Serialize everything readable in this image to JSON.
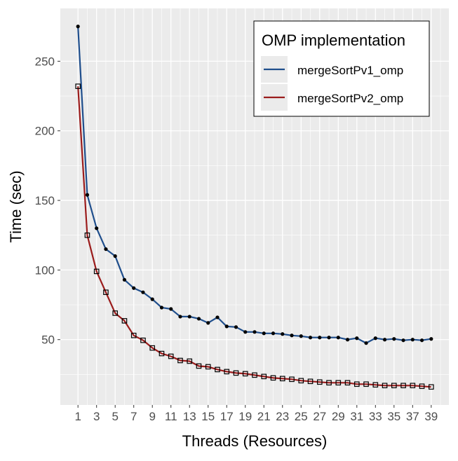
{
  "chart_data": {
    "type": "line",
    "title": "",
    "xlabel": "Threads (Resources)",
    "ylabel": "Time (sec)",
    "xlim": [
      -0.9,
      40.9
    ],
    "ylim": [
      3.05,
      287.95
    ],
    "x_ticks": [
      1,
      3,
      5,
      7,
      9,
      11,
      13,
      15,
      17,
      19,
      21,
      23,
      25,
      27,
      29,
      31,
      33,
      35,
      37,
      39
    ],
    "y_ticks": [
      50,
      100,
      150,
      200,
      250
    ],
    "grid": true,
    "legend": {
      "title": "OMP implementation",
      "placement": "top-right"
    },
    "x": [
      1,
      2,
      3,
      4,
      5,
      6,
      7,
      8,
      9,
      10,
      11,
      12,
      13,
      14,
      15,
      16,
      17,
      18,
      19,
      20,
      21,
      22,
      23,
      24,
      25,
      26,
      27,
      28,
      29,
      30,
      31,
      32,
      33,
      34,
      35,
      36,
      37,
      38,
      39
    ],
    "series": [
      {
        "name": "mergeSortPv1_omp",
        "color": "#1f4e8c",
        "marker": "circle",
        "values": [
          275,
          154,
          130,
          115,
          110,
          93,
          87,
          84,
          79,
          73,
          72,
          66.5,
          66.5,
          65,
          62,
          66,
          59.5,
          59,
          55.5,
          55.5,
          54.5,
          54.5,
          54,
          53,
          52.5,
          51.5,
          51.5,
          51.5,
          51.5,
          50,
          51,
          47.5,
          51,
          50,
          50.5,
          49.5,
          50,
          49.5,
          50.5
        ]
      },
      {
        "name": "mergeSortPv2_omp",
        "color": "#9b1c1c",
        "marker": "square",
        "values": [
          232,
          125,
          99,
          84,
          69,
          63.5,
          53,
          49.5,
          44,
          40,
          38,
          35,
          34.5,
          31,
          30.5,
          28.5,
          27,
          26,
          25.5,
          24.5,
          23.5,
          22.5,
          22,
          21.5,
          20.5,
          20,
          19.5,
          19,
          19,
          19,
          18,
          18,
          17.5,
          17,
          17,
          17,
          17,
          16.5,
          16
        ]
      }
    ]
  }
}
